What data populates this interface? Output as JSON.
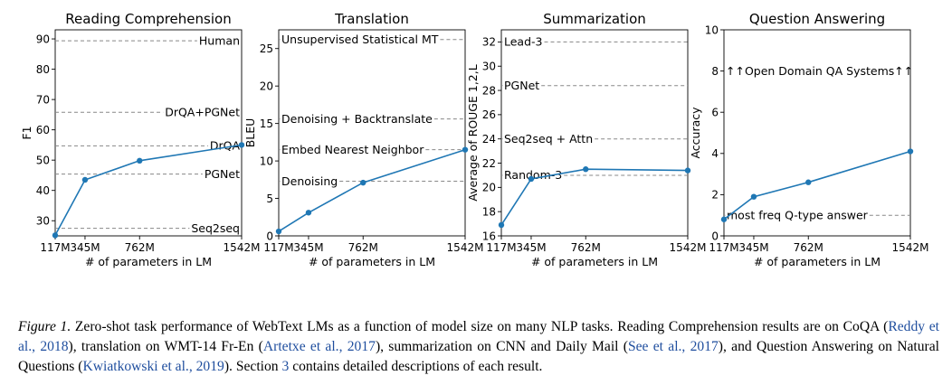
{
  "chart_data": [
    {
      "type": "line",
      "title": "Reading Comprehension",
      "xlabel": "# of parameters in LM",
      "ylabel": "F1",
      "categories": [
        "117M",
        "345M",
        "762M",
        "1542M"
      ],
      "x": [
        117,
        345,
        762,
        1542
      ],
      "y": [
        25.2,
        43.5,
        49.8,
        55.0
      ],
      "xlim": [
        117,
        1542
      ],
      "ylim": [
        25,
        93
      ],
      "yticks": [
        30,
        40,
        50,
        60,
        70,
        80,
        90
      ],
      "ytick_labels": [
        "30",
        "40",
        "50",
        "60",
        "70",
        "80",
        "90"
      ],
      "line_color": "#1f77b4",
      "reference_color": "#888888",
      "baselines": [
        {
          "label": "Human",
          "value": 89.4
        },
        {
          "label": "DrQA+PGNet",
          "value": 65.8
        },
        {
          "label": "DrQA",
          "value": 54.7
        },
        {
          "label": "PGNet",
          "value": 45.4
        },
        {
          "label": "Seq2seq",
          "value": 27.5
        }
      ]
    },
    {
      "type": "line",
      "title": "Translation",
      "xlabel": "# of parameters in LM",
      "ylabel": "BLEU",
      "categories": [
        "117M",
        "345M",
        "762M",
        "1542M"
      ],
      "x": [
        117,
        345,
        762,
        1542
      ],
      "y": [
        0.6,
        3.1,
        7.1,
        11.5
      ],
      "xlim": [
        117,
        1542
      ],
      "ylim": [
        0,
        27.5
      ],
      "yticks": [
        0,
        5,
        10,
        15,
        20,
        25
      ],
      "ytick_labels": [
        "0",
        "5",
        "10",
        "15",
        "20",
        "25"
      ],
      "line_color": "#1f77b4",
      "reference_color": "#888888",
      "baselines": [
        {
          "label": "Unsupervised Statistical MT",
          "value": 26.2
        },
        {
          "label": "Denoising + Backtranslate",
          "value": 15.6
        },
        {
          "label": "Embed Nearest Neighbor",
          "value": 11.5
        },
        {
          "label": "Denoising",
          "value": 7.3
        }
      ]
    },
    {
      "type": "line",
      "title": "Summarization",
      "xlabel": "# of parameters in LM",
      "ylabel": "Average of ROUGE 1,2,L",
      "categories": [
        "117M",
        "345M",
        "762M",
        "1542M"
      ],
      "x": [
        117,
        345,
        762,
        1542
      ],
      "y": [
        16.9,
        20.7,
        21.5,
        21.4
      ],
      "xlim": [
        117,
        1542
      ],
      "ylim": [
        16,
        33
      ],
      "yticks": [
        16,
        18,
        20,
        22,
        24,
        26,
        28,
        30,
        32
      ],
      "ytick_labels": [
        "16",
        "18",
        "20",
        "22",
        "24",
        "26",
        "28",
        "30",
        "32"
      ],
      "line_color": "#1f77b4",
      "reference_color": "#888888",
      "baselines": [
        {
          "label": "Lead-3",
          "value": 32.0
        },
        {
          "label": "PGNet",
          "value": 28.4
        },
        {
          "label": "Seq2seq + Attn",
          "value": 24.0
        },
        {
          "label": "Random-3",
          "value": 21.0
        }
      ]
    },
    {
      "type": "line",
      "title": "Question Answering",
      "xlabel": "# of parameters in LM",
      "ylabel": "Accuracy",
      "categories": [
        "117M",
        "345M",
        "762M",
        "1542M"
      ],
      "x": [
        117,
        345,
        762,
        1542
      ],
      "y": [
        0.8,
        1.9,
        2.6,
        4.1
      ],
      "xlim": [
        117,
        1542
      ],
      "ylim": [
        0,
        10
      ],
      "yticks": [
        0,
        2,
        4,
        6,
        8,
        10
      ],
      "ytick_labels": [
        "0",
        "2",
        "4",
        "6",
        "8",
        "10"
      ],
      "line_color": "#1f77b4",
      "reference_color": "#888888",
      "baselines": [
        {
          "label": "most freq Q-type answer",
          "value": 1.0
        }
      ],
      "callouts": [
        {
          "label": "↑↑Open Domain QA Systems↑↑",
          "value": 8.0
        }
      ]
    }
  ],
  "caption": {
    "figure_label": "Figure 1.",
    "text_1": " Zero-shot task performance of WebText LMs as a function of model size on many NLP tasks. Reading Comprehension results are on CoQA (",
    "cite_1": "Reddy et al., 2018",
    "text_2": "), translation on WMT-14 Fr-En (",
    "cite_2": "Artetxe et al., 2017",
    "text_3": "), summarization on CNN and Daily Mail (",
    "cite_3": "See et al., 2017",
    "text_4": "), and Question Answering on Natural Questions (",
    "cite_4": "Kwiatkowski et al., 2019",
    "text_5": "). Section ",
    "cite_5": "3",
    "text_6": " contains detailed descriptions of each result."
  }
}
